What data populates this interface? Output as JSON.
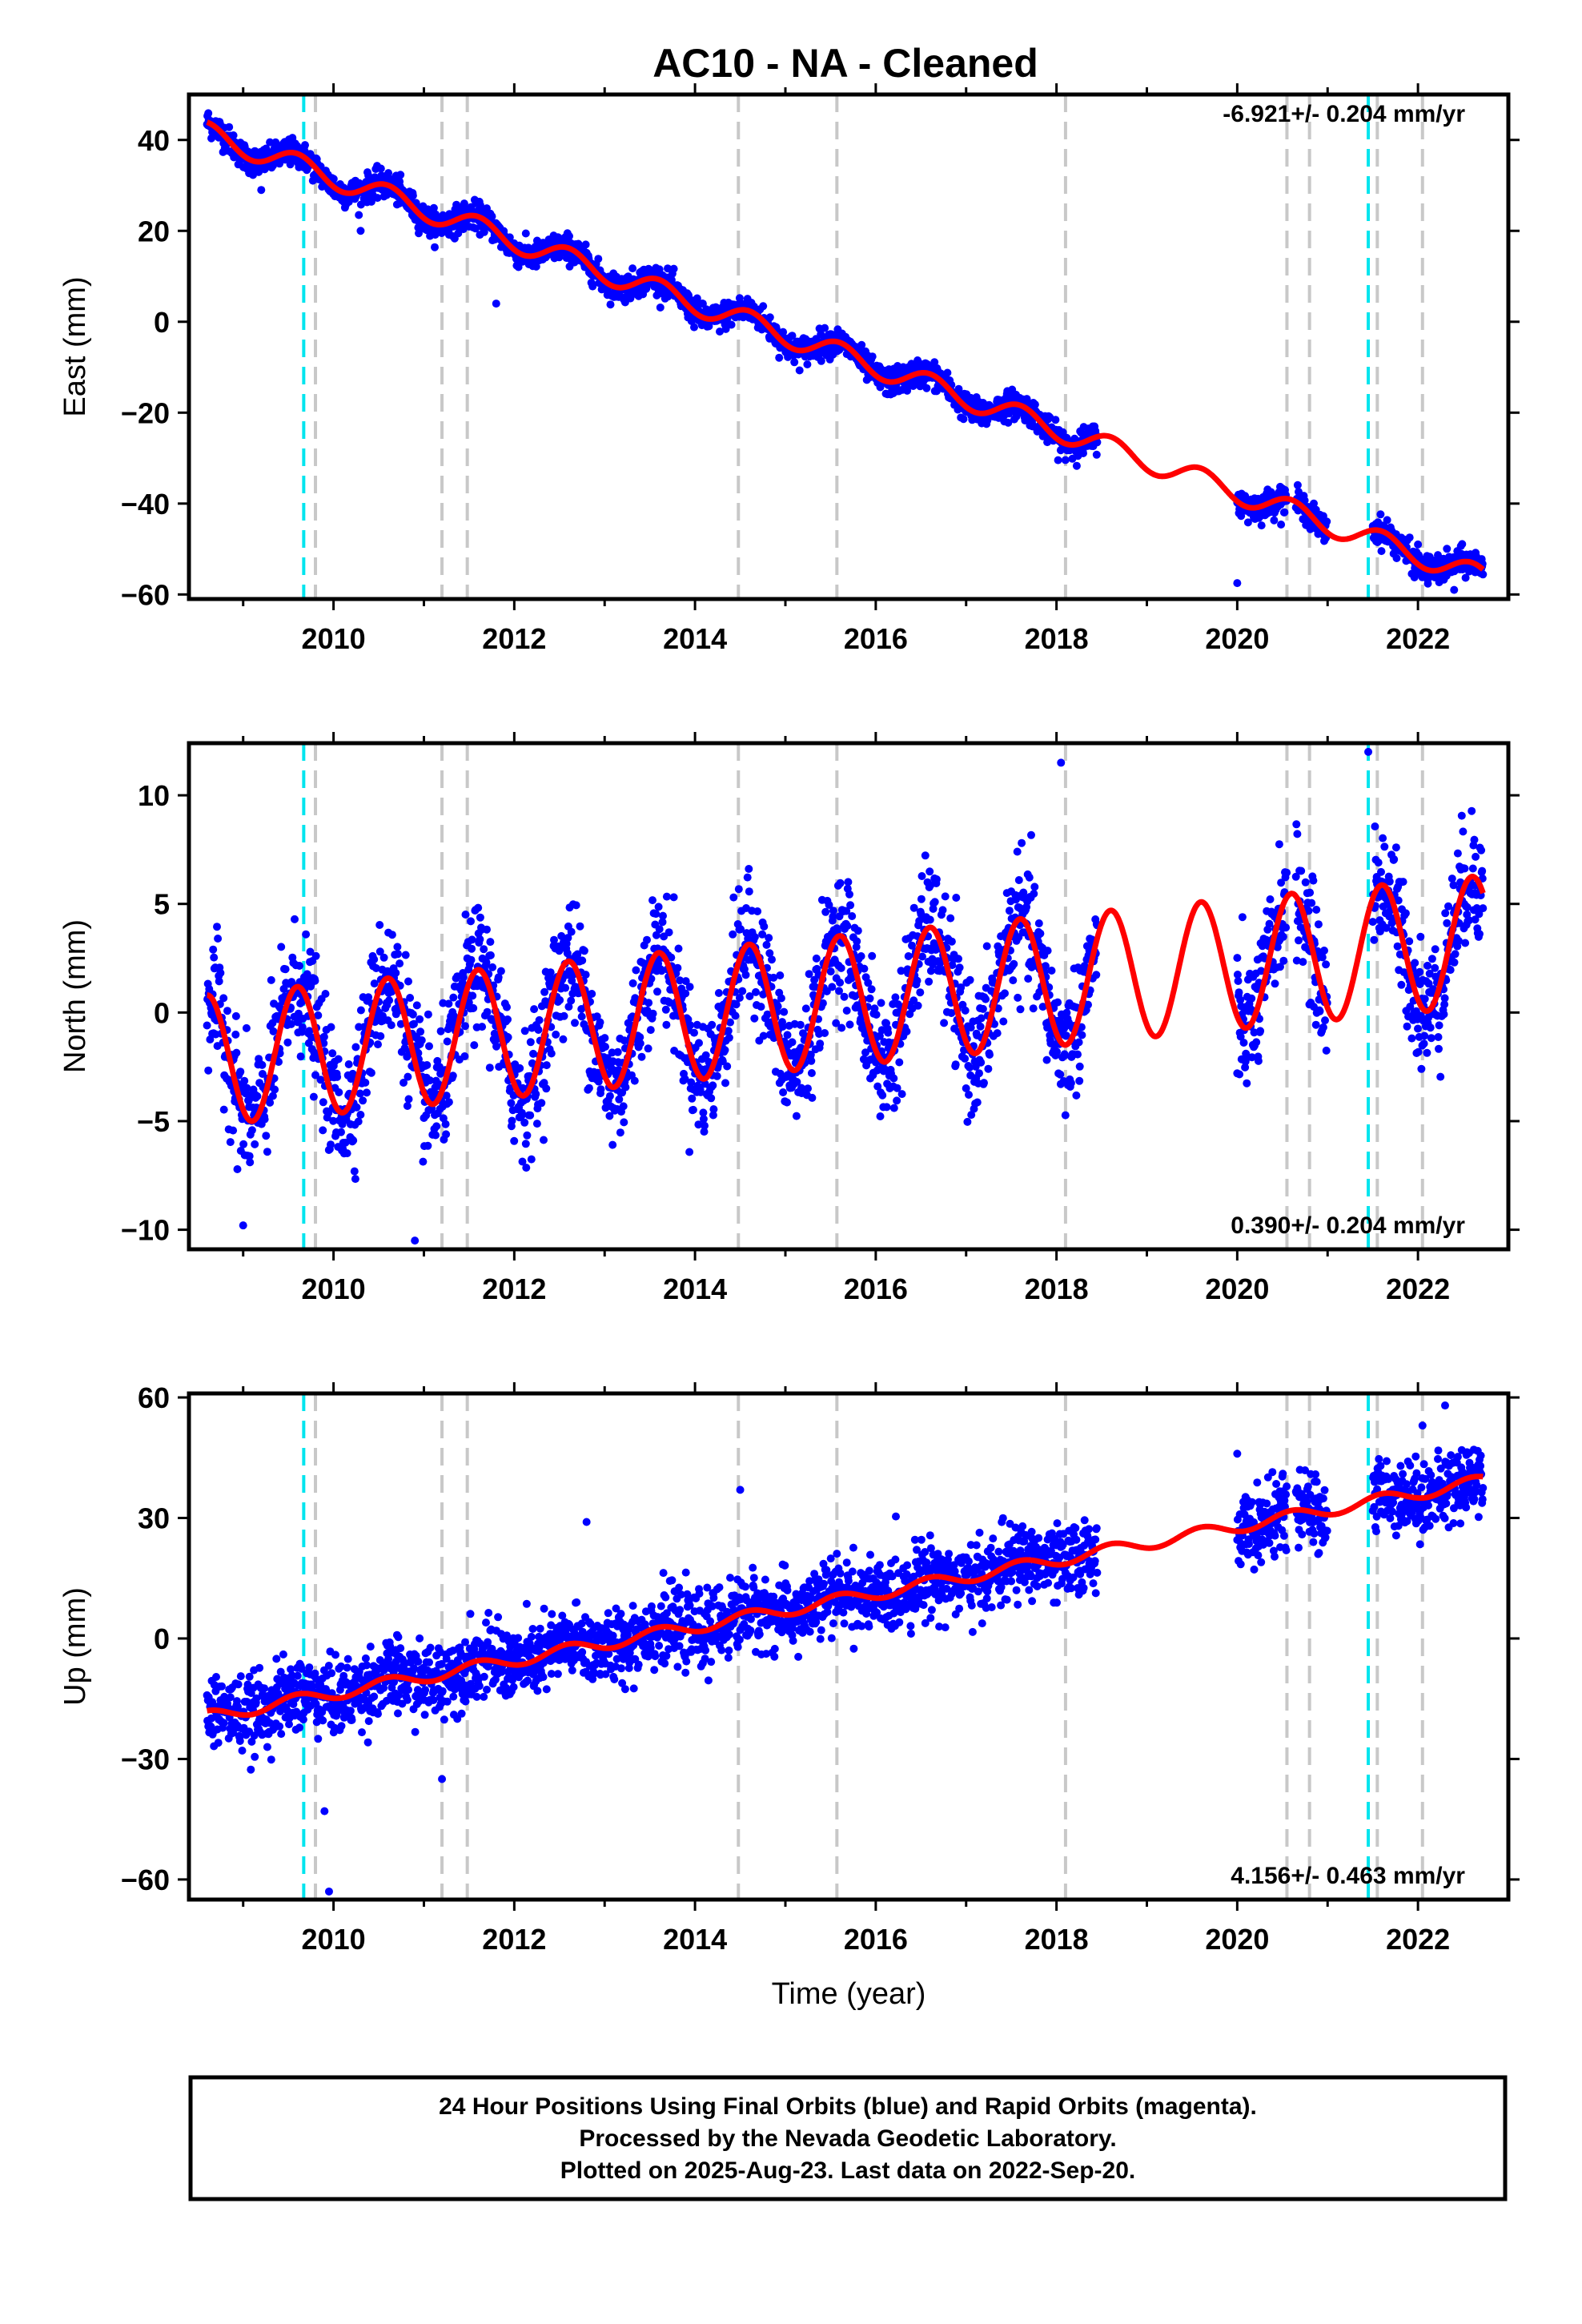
{
  "chart_data": [
    {
      "type": "scatter",
      "title": "AC10  - NA - Cleaned",
      "ylabel": "East (mm)",
      "xlabel": "",
      "xlim": [
        2008.4,
        2023.0
      ],
      "ylim": [
        -61,
        50
      ],
      "x_ticks": [
        2010,
        2012,
        2014,
        2016,
        2018,
        2020,
        2022
      ],
      "y_ticks": [
        -60,
        -40,
        -20,
        0,
        20,
        40
      ],
      "annotation": "-6.921+/- 0.204 mm/yr",
      "annotation_position": "top-right",
      "trend": {
        "slope": -6.921,
        "amplitude": 2.5,
        "offset": 41.4
      },
      "data_span": [
        [
          2008.6,
          2018.45
        ],
        [
          2020.0,
          2020.55
        ],
        [
          2020.65,
          2021.0
        ],
        [
          2021.5,
          2022.72
        ]
      ],
      "noise": 1.5,
      "outliers": [
        [
          2009.2,
          29
        ],
        [
          2010.3,
          20
        ],
        [
          2011.8,
          4
        ],
        [
          2020.0,
          -57.5
        ],
        [
          2022.0,
          -49
        ],
        [
          2022.4,
          -59
        ]
      ],
      "series": [
        {
          "name": "Final Orbits",
          "color": "#0000ff",
          "kind": "points"
        },
        {
          "name": "Model",
          "color": "#ff0000",
          "kind": "line"
        }
      ],
      "events_gray": [
        2009.8,
        2011.2,
        2011.48,
        2014.48,
        2015.57,
        2018.1,
        2020.55,
        2020.8,
        2021.55,
        2022.05
      ],
      "events_cyan": [
        2009.67,
        2021.45
      ],
      "grid": false
    },
    {
      "type": "scatter",
      "title": "",
      "ylabel": "North (mm)",
      "xlabel": "",
      "xlim": [
        2008.4,
        2023.0
      ],
      "ylim": [
        -10.9,
        12.4
      ],
      "x_ticks": [
        2010,
        2012,
        2014,
        2016,
        2018,
        2020,
        2022
      ],
      "y_ticks": [
        -10,
        -5,
        0,
        5,
        10
      ],
      "annotation": "0.390+/- 0.204 mm/yr",
      "annotation_position": "bottom-right",
      "trend": {
        "slope": 0.39,
        "amplitude": 3.0,
        "offset": -2.2
      },
      "data_span": [
        [
          2008.6,
          2018.45
        ],
        [
          2020.0,
          2020.55
        ],
        [
          2020.65,
          2021.0
        ],
        [
          2021.5,
          2022.72
        ]
      ],
      "noise": 1.4,
      "outliers": [
        [
          2009.0,
          -9.8
        ],
        [
          2010.9,
          -10.5
        ],
        [
          2018.05,
          11.5
        ],
        [
          2021.45,
          12.0
        ],
        [
          2020.0,
          -2.8
        ]
      ],
      "series": [
        {
          "name": "Final Orbits",
          "color": "#0000ff",
          "kind": "points"
        },
        {
          "name": "Model",
          "color": "#ff0000",
          "kind": "line"
        }
      ],
      "events_gray": [
        2009.8,
        2011.2,
        2011.48,
        2014.48,
        2015.57,
        2018.1,
        2020.55,
        2020.8,
        2021.55,
        2022.05
      ],
      "events_cyan": [
        2009.67,
        2021.45
      ],
      "grid": false
    },
    {
      "type": "scatter",
      "title": "",
      "ylabel": "Up (mm)",
      "xlabel": "Time (year)",
      "xlim": [
        2008.4,
        2023.0
      ],
      "ylim": [
        -65,
        61
      ],
      "x_ticks": [
        2010,
        2012,
        2014,
        2016,
        2018,
        2020,
        2022
      ],
      "y_ticks": [
        -60,
        -30,
        0,
        30,
        60
      ],
      "annotation": "4.156+/- 0.463 mm/yr",
      "annotation_position": "bottom-right",
      "trend": {
        "slope": 4.156,
        "amplitude": 1.5,
        "offset": -19.5
      },
      "data_span": [
        [
          2008.6,
          2018.45
        ],
        [
          2020.0,
          2020.55
        ],
        [
          2020.65,
          2021.0
        ],
        [
          2021.5,
          2022.72
        ]
      ],
      "noise": 4.5,
      "outliers": [
        [
          2009.95,
          -63
        ],
        [
          2009.9,
          -43
        ],
        [
          2014.5,
          37
        ],
        [
          2012.8,
          29
        ],
        [
          2020.0,
          46
        ],
        [
          2022.3,
          58
        ],
        [
          2022.05,
          53
        ],
        [
          2011.2,
          -35
        ]
      ],
      "series": [
        {
          "name": "Final Orbits",
          "color": "#0000ff",
          "kind": "points"
        },
        {
          "name": "Model",
          "color": "#ff0000",
          "kind": "line"
        }
      ],
      "events_gray": [
        2009.8,
        2011.2,
        2011.48,
        2014.48,
        2015.57,
        2018.1,
        2020.55,
        2020.8,
        2021.55,
        2022.05
      ],
      "events_cyan": [
        2009.67,
        2021.45
      ],
      "grid": false
    }
  ],
  "footer": {
    "line1": "24 Hour Positions Using Final Orbits (blue) and Rapid Orbits (magenta).",
    "line2": "Processed by the Nevada Geodetic Laboratory.",
    "line3": "Plotted on 2025-Aug-23. Last data on 2022-Sep-20."
  }
}
